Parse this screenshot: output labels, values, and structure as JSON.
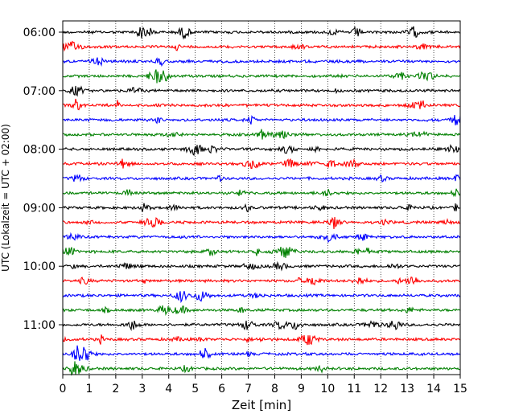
{
  "chart_data": {
    "type": "line",
    "title": "",
    "xlabel": "Zeit  [min]",
    "ylabel": "UTC (Lokalzeit = UTC + 02:00)",
    "xlim": [
      0,
      15
    ],
    "x_ticks": [
      "0",
      "1",
      "2",
      "3",
      "4",
      "5",
      "6",
      "7",
      "8",
      "9",
      "10",
      "11",
      "12",
      "13",
      "14",
      "15"
    ],
    "y_ticks": [
      "06:00",
      "07:00",
      "08:00",
      "09:00",
      "10:00",
      "11:00"
    ],
    "grid": "vertical-dotted",
    "trace_colors": [
      "#000000",
      "#ff0000",
      "#0000ff",
      "#008000"
    ],
    "traces": [
      {
        "start": "06:00",
        "color": "#000000"
      },
      {
        "start": "06:15",
        "color": "#ff0000"
      },
      {
        "start": "06:30",
        "color": "#0000ff"
      },
      {
        "start": "06:45",
        "color": "#008000"
      },
      {
        "start": "07:00",
        "color": "#000000"
      },
      {
        "start": "07:15",
        "color": "#ff0000"
      },
      {
        "start": "07:30",
        "color": "#0000ff"
      },
      {
        "start": "07:45",
        "color": "#008000"
      },
      {
        "start": "08:00",
        "color": "#000000"
      },
      {
        "start": "08:15",
        "color": "#ff0000"
      },
      {
        "start": "08:30",
        "color": "#0000ff"
      },
      {
        "start": "08:45",
        "color": "#008000"
      },
      {
        "start": "09:00",
        "color": "#000000"
      },
      {
        "start": "09:15",
        "color": "#ff0000"
      },
      {
        "start": "09:30",
        "color": "#0000ff"
      },
      {
        "start": "09:45",
        "color": "#008000"
      },
      {
        "start": "10:00",
        "color": "#000000"
      },
      {
        "start": "10:15",
        "color": "#ff0000"
      },
      {
        "start": "10:30",
        "color": "#0000ff"
      },
      {
        "start": "10:45",
        "color": "#008000"
      },
      {
        "start": "11:00",
        "color": "#000000"
      },
      {
        "start": "11:15",
        "color": "#ff0000"
      },
      {
        "start": "11:30",
        "color": "#0000ff"
      },
      {
        "start": "11:45",
        "color": "#008000"
      }
    ]
  }
}
